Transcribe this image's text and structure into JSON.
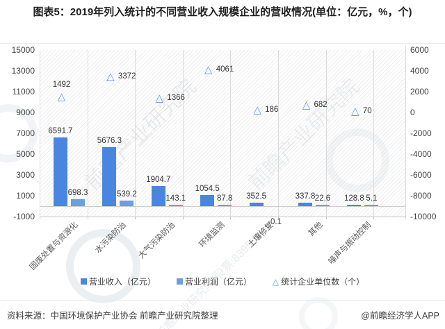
{
  "title": "图表5：2019年列入统计的不同营业收入规模企业的营收情况(单位：亿元，%，个)",
  "colors": {
    "revenue_bar": "#4A86DF",
    "profit_bar": "#6B9EE3",
    "units_marker": "#5E97E6",
    "gridline": "#dcdcdc"
  },
  "chart_data": {
    "type": "bar",
    "subtype": "combo-bar-and-triangle-scatter",
    "categories": [
      "固废处置与资源化",
      "水污染防治",
      "大气污染防治",
      "环境监测",
      "土壤修复",
      "其他",
      "噪声与振动控制"
    ],
    "series": [
      {
        "name": "营业收入（亿元）",
        "type": "bar",
        "axis": "left",
        "values": [
          6591.7,
          5676.3,
          1904.7,
          1054.5,
          352.5,
          337.8,
          128.8
        ]
      },
      {
        "name": "营业利润（亿元）",
        "type": "bar",
        "axis": "left",
        "values": [
          698.3,
          539.2,
          143.1,
          87.8,
          -0.1,
          22.6,
          5.1
        ]
      },
      {
        "name": "统计企业单位数（个）",
        "type": "scatter",
        "marker": "triangle-open",
        "axis": "right",
        "values": [
          1492,
          3372,
          1366,
          4061,
          186,
          682,
          70
        ]
      }
    ],
    "left_axis": {
      "min": -1000,
      "max": 15000,
      "tick_step": 2000,
      "ticks": [
        "15000",
        "13000",
        "11000",
        "9000",
        "7000",
        "5000",
        "3000",
        "1000",
        "-1000"
      ]
    },
    "right_axis": {
      "min": -10000,
      "max": 6000,
      "tick_step": 2000,
      "ticks": [
        "6000",
        "4000",
        "2000",
        "0",
        "-2000",
        "-4000",
        "-6000",
        "-8000",
        "-10000"
      ]
    },
    "grid": "vertical",
    "legend_position": "bottom",
    "data_labels": true
  },
  "watermark": {
    "brand": "前瞻产业研究院",
    "brand_stock": "前瞻产业研究院(股票:839599)"
  },
  "footer": {
    "source": "资料来源：中国环境保护产业协会 前瞻产业研究院整理",
    "credit": "@前瞻经济学人APP"
  }
}
